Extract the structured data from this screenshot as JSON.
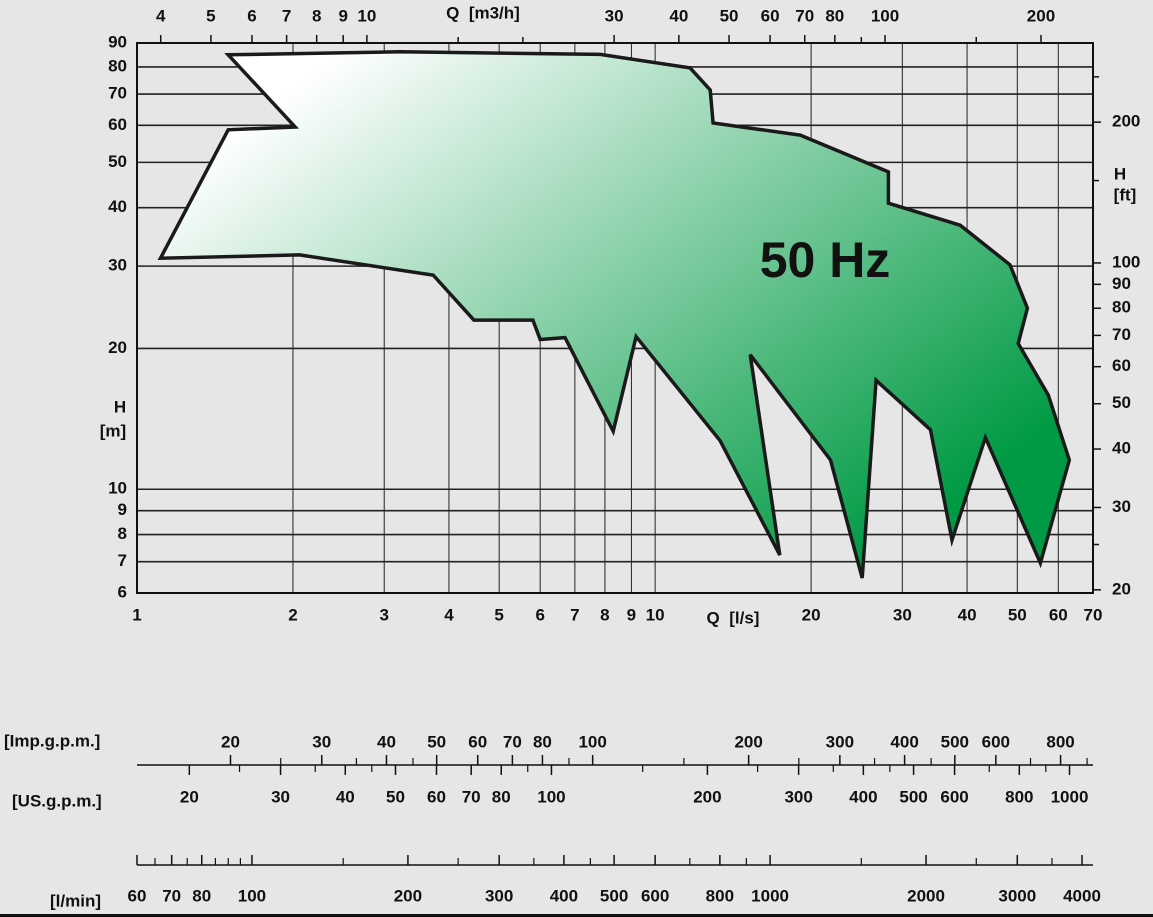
{
  "chart_data": {
    "type": "area",
    "log_x": true,
    "log_y": true,
    "grid": true,
    "color": "#009a44",
    "annotation": "50 Hz",
    "x_label": "Q  [l/s]",
    "y_label": [
      "H",
      "[m]"
    ],
    "xlim": [
      1,
      70
    ],
    "xticks": [
      1,
      2,
      3,
      4,
      5,
      6,
      7,
      8,
      9,
      10,
      20,
      30,
      40,
      50,
      60,
      70
    ],
    "ylim": [
      6,
      90
    ],
    "yticks": [
      6,
      7,
      8,
      9,
      10,
      20,
      30,
      40,
      50,
      60,
      70,
      80,
      90
    ],
    "x": [
      1.5,
      3.22,
      7.83,
      11.68,
      12.77,
      12.94,
      19.05,
      28.2,
      28.2,
      38.8,
      48.4,
      52.3,
      50.2,
      57.4,
      63.0,
      55.4,
      43.4,
      37.4,
      34.0,
      26.7,
      25.1,
      21.8,
      15.26,
      17.4,
      13.35,
      9.19,
      8.3,
      6.7,
      6.0,
      5.81,
      4.47,
      3.73,
      2.06,
      1.11,
      1.5,
      2.02
    ],
    "values": [
      84.9,
      86.2,
      85.1,
      79.6,
      71.4,
      60.7,
      57.2,
      47.7,
      40.9,
      36.7,
      30.2,
      24.4,
      20.5,
      15.9,
      11.55,
      6.95,
      12.9,
      7.79,
      13.4,
      17.1,
      6.46,
      11.55,
      19.4,
      7.23,
      12.7,
      21.2,
      13.3,
      21.1,
      20.9,
      23.0,
      23.0,
      28.7,
      31.7,
      31.2,
      58.7,
      59.5
    ],
    "top_axis": {
      "label": "Q  [m3/h]",
      "lim": [
        3.6,
        252
      ],
      "ticks": [
        4,
        5,
        6,
        7,
        8,
        9,
        10,
        30,
        40,
        50,
        60,
        70,
        80,
        100,
        200
      ],
      "minor_ticks": [
        15,
        20,
        90,
        150
      ]
    },
    "right_axis": {
      "label": [
        "H",
        "[ft]"
      ],
      "lim": [
        19.69,
        295.3
      ],
      "ticks": [
        20,
        30,
        40,
        50,
        60,
        70,
        80,
        90,
        100,
        200
      ],
      "minor_ticks": [
        25,
        150,
        250
      ]
    },
    "scales": [
      {
        "label": "[Imp.g.p.m.]",
        "lim": [
          13.2,
          924
        ],
        "ticks": [
          20,
          30,
          40,
          50,
          60,
          70,
          80,
          100,
          200,
          300,
          400,
          500,
          600,
          800
        ],
        "minor_ticks": [
          25,
          35,
          45,
          90,
          150,
          250,
          350,
          450,
          700,
          900
        ]
      },
      {
        "label": "[US.g.p.m.]",
        "lim": [
          15.85,
          1110
        ],
        "ticks": [
          20,
          30,
          40,
          50,
          60,
          70,
          80,
          100,
          200,
          300,
          400,
          500,
          600,
          800,
          1000
        ],
        "minor_ticks": [
          25,
          35,
          45,
          90,
          150,
          250,
          350,
          450,
          700,
          900
        ]
      },
      {
        "label": "[l/min]",
        "lim": [
          60,
          4200
        ],
        "ticks": [
          60,
          70,
          80,
          100,
          200,
          300,
          400,
          500,
          600,
          800,
          1000,
          2000,
          3000,
          4000
        ],
        "minor_ticks": [
          65,
          75,
          85,
          90,
          95,
          150,
          250,
          350,
          450,
          700,
          900,
          1500,
          2500,
          3500
        ]
      }
    ]
  }
}
